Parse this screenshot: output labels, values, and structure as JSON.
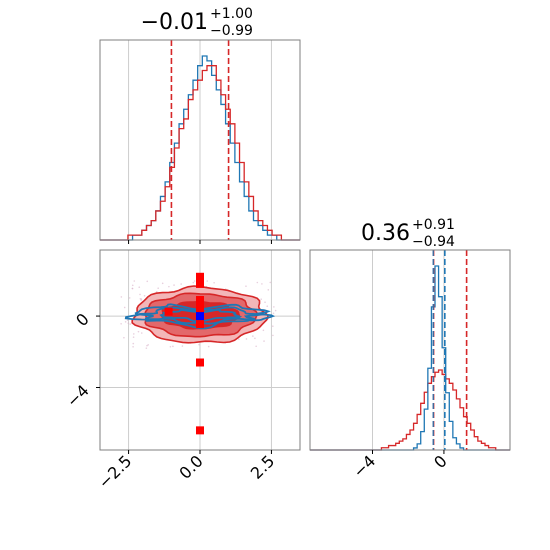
{
  "colors": {
    "red": "#d62728",
    "blue": "#1f77b4",
    "dot_blue": "#0000ff",
    "dot_red": "#ff0000",
    "grid": "#cccccc",
    "frame": "#7f7f7f"
  },
  "chart_data": {
    "type": "corner",
    "grid": true,
    "parameters": [
      {
        "title": {
          "value": "−0.01",
          "plus": "+1.00",
          "minus": "−0.99"
        },
        "median": -0.01,
        "quantiles": [
          -1.0,
          1.0
        ],
        "range": [
          -3.5,
          3.5
        ]
      },
      {
        "title": {
          "value": "0.36",
          "plus": "+0.91",
          "minus": "−0.94"
        },
        "median": 0.36,
        "quantiles": [
          -0.58,
          1.27
        ],
        "range": [
          -7.5,
          3.7
        ]
      }
    ],
    "x_ticks_param1": [
      {
        "value": -2.5,
        "label": "−2.5"
      },
      {
        "value": 0.0,
        "label": "0.0"
      },
      {
        "value": 2.5,
        "label": "2.5"
      }
    ],
    "x_ticks_param2": [
      {
        "value": -4,
        "label": "−4"
      },
      {
        "value": 0,
        "label": "0"
      }
    ],
    "y_ticks_param2": [
      {
        "value": 0,
        "label": "0"
      },
      {
        "value": -4,
        "label": "−4"
      }
    ],
    "hist_param1": {
      "red": {
        "min": -3.5,
        "max": 3.5,
        "values": [
          0,
          0,
          0,
          0,
          0,
          0,
          1,
          1,
          1,
          2,
          3,
          4,
          6,
          8,
          11,
          15,
          19,
          23,
          25,
          29,
          31,
          33,
          35,
          36,
          36,
          33,
          30,
          27,
          24,
          20,
          16,
          12,
          9,
          6,
          4,
          3,
          2,
          1,
          1,
          0,
          0,
          0,
          0
        ]
      },
      "blue": {
        "min": -3.5,
        "max": 3.5,
        "values": [
          0,
          0,
          0,
          0,
          0,
          0,
          0,
          1,
          1,
          2,
          3,
          4,
          6,
          9,
          12,
          16,
          20,
          24,
          27,
          30,
          33,
          36,
          38,
          37,
          34,
          31,
          28,
          24,
          20,
          16,
          12,
          9,
          6,
          4,
          3,
          2,
          1,
          1,
          0,
          0,
          0,
          0,
          0
        ]
      }
    },
    "hist_param2": {
      "red": {
        "min": -7.5,
        "max": 3.7,
        "values": [
          0,
          0,
          0,
          0,
          0,
          0,
          0,
          0,
          0,
          0,
          0,
          0,
          0,
          0,
          0,
          0,
          0,
          0,
          0,
          0,
          1,
          1,
          2,
          2,
          3,
          4,
          5,
          7,
          9,
          12,
          16,
          21,
          26,
          30,
          33,
          35,
          36,
          34,
          32,
          30,
          27,
          23,
          19,
          15,
          12,
          9,
          6,
          4,
          3,
          2,
          1,
          1,
          0,
          0,
          0,
          0
        ]
      },
      "blue": {
        "min": -7.5,
        "max": 3.7,
        "values": [
          0,
          0,
          0,
          0,
          0,
          0,
          0,
          0,
          0,
          0,
          0,
          0,
          0,
          0,
          0,
          0,
          0,
          0,
          0,
          0,
          0,
          0,
          0,
          0,
          0,
          0,
          0,
          0,
          0,
          1,
          3,
          9,
          20,
          40,
          70,
          90,
          75,
          50,
          28,
          14,
          6,
          3,
          1,
          0,
          0,
          0,
          0,
          0,
          0,
          0,
          0,
          0,
          0,
          0,
          0,
          0
        ]
      }
    },
    "joint_red_contours": [
      {
        "rx": 2.3,
        "ry": 1.55
      },
      {
        "rx": 1.95,
        "ry": 1.2
      },
      {
        "rx": 1.35,
        "ry": 0.75
      }
    ],
    "joint_blue_contours": [
      {
        "rx": 2.35,
        "ry": 0.52
      },
      {
        "rx": 1.9,
        "ry": 0.38
      },
      {
        "rx": 1.3,
        "ry": 0.25
      }
    ],
    "red_markers": [
      {
        "x": 0.0,
        "y": 2.2
      },
      {
        "x": 0.0,
        "y": 1.8
      },
      {
        "x": 0.0,
        "y": 0.9
      },
      {
        "x": 0.0,
        "y": 0.55
      },
      {
        "x": -1.1,
        "y": 0.25
      },
      {
        "x": 0.0,
        "y": 0.15
      },
      {
        "x": 0.0,
        "y": -0.45
      },
      {
        "x": 0.0,
        "y": -2.6
      },
      {
        "x": 0.0,
        "y": -6.4
      }
    ],
    "blue_marker": {
      "x": 0.0,
      "y": 0.0
    }
  }
}
